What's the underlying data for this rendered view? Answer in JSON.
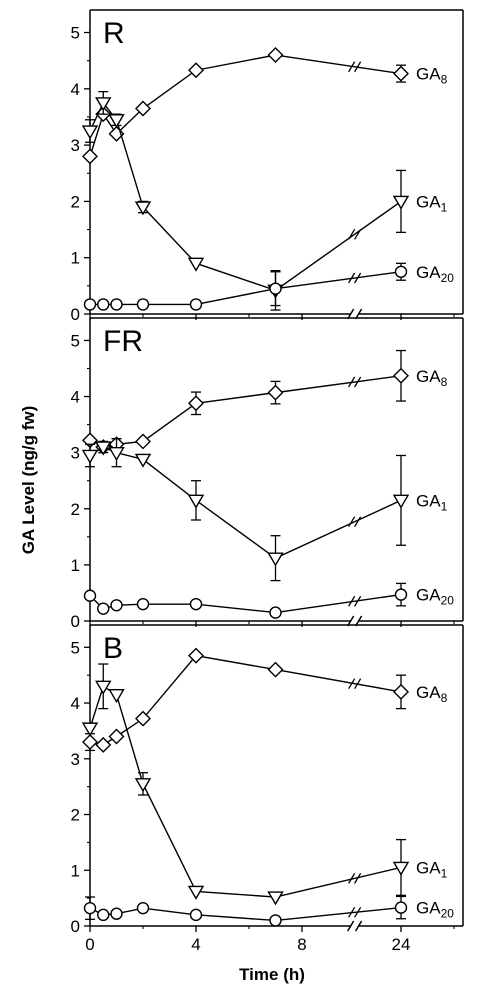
{
  "chart_data": {
    "type": "line",
    "ylabel": "GA Level (ng/g fw)",
    "xlabel": "Time (h)",
    "x_tick_labels": [
      "0",
      "4",
      "8",
      "24"
    ],
    "y_ticks": [
      0,
      1,
      2,
      3,
      4,
      5
    ],
    "ylim": [
      0,
      5.4
    ],
    "axis_break": "between 8 h and 24 h",
    "markers": {
      "GA8": "diamond",
      "GA1": "triangle-down",
      "GA20": "circle"
    },
    "panels": [
      {
        "label": "R",
        "series": [
          {
            "name": "GA8",
            "name_base": "GA",
            "name_sub": "8",
            "x": [
              0,
              0.5,
              1,
              2,
              4,
              7,
              24
            ],
            "y": [
              2.8,
              3.55,
              3.2,
              3.65,
              4.33,
              4.6,
              4.27
            ],
            "err": [
              0,
              0,
              0,
              0,
              0,
              0,
              0.15
            ]
          },
          {
            "name": "GA1",
            "name_base": "GA",
            "name_sub": "1",
            "x": [
              0,
              0.5,
              1,
              2,
              4,
              7,
              24
            ],
            "y": [
              3.25,
              3.75,
              3.45,
              1.9,
              0.9,
              0.42,
              2.0
            ],
            "err": [
              0.2,
              0.2,
              0.1,
              0.1,
              0,
              0.35,
              0.55
            ]
          },
          {
            "name": "GA20",
            "name_base": "GA",
            "name_sub": "20",
            "x": [
              0,
              0.5,
              1,
              2,
              4,
              7,
              24
            ],
            "y": [
              0.17,
              0.17,
              0.17,
              0.17,
              0.17,
              0.45,
              0.75
            ],
            "err": [
              0,
              0,
              0,
              0,
              0,
              0.3,
              0.15
            ]
          }
        ]
      },
      {
        "label": "FR",
        "series": [
          {
            "name": "GA8",
            "name_base": "GA",
            "name_sub": "8",
            "x": [
              0,
              0.5,
              1,
              2,
              4,
              7,
              24
            ],
            "y": [
              3.22,
              3.1,
              3.15,
              3.2,
              3.88,
              4.07,
              4.37
            ],
            "err": [
              0,
              0,
              0.1,
              0,
              0.2,
              0.2,
              0.45
            ]
          },
          {
            "name": "GA1",
            "name_base": "GA",
            "name_sub": "1",
            "x": [
              0,
              0.5,
              1,
              2,
              4,
              7,
              24
            ],
            "y": [
              2.95,
              3.1,
              3.0,
              2.88,
              2.15,
              1.12,
              2.15
            ],
            "err": [
              0.2,
              0.1,
              0.25,
              0,
              0.35,
              0.4,
              0.8
            ]
          },
          {
            "name": "GA20",
            "name_base": "GA",
            "name_sub": "20",
            "x": [
              0,
              0.5,
              1,
              2,
              4,
              7,
              24
            ],
            "y": [
              0.45,
              0.22,
              0.28,
              0.3,
              0.3,
              0.15,
              0.47
            ],
            "err": [
              0,
              0,
              0,
              0,
              0,
              0,
              0.2
            ]
          }
        ]
      },
      {
        "label": "B",
        "series": [
          {
            "name": "GA8",
            "name_base": "GA",
            "name_sub": "8",
            "x": [
              0,
              0.5,
              1,
              2,
              4,
              7,
              24
            ],
            "y": [
              3.3,
              3.25,
              3.4,
              3.72,
              4.85,
              4.6,
              4.2
            ],
            "err": [
              0.15,
              0,
              0,
              0,
              0,
              0,
              0.3
            ]
          },
          {
            "name": "GA1",
            "name_base": "GA",
            "name_sub": "1",
            "x": [
              0,
              0.5,
              1,
              2,
              4,
              7,
              24
            ],
            "y": [
              3.55,
              4.3,
              4.15,
              2.55,
              0.62,
              0.52,
              1.05
            ],
            "err": [
              0,
              0.4,
              0,
              0.2,
              0,
              0,
              0.5
            ]
          },
          {
            "name": "GA20",
            "name_base": "GA",
            "name_sub": "20",
            "x": [
              0,
              0.5,
              1,
              2,
              4,
              7,
              24
            ],
            "y": [
              0.32,
              0.2,
              0.22,
              0.32,
              0.2,
              0.1,
              0.33
            ],
            "err": [
              0.2,
              0,
              0,
              0,
              0,
              0,
              0.2
            ]
          }
        ]
      }
    ]
  }
}
